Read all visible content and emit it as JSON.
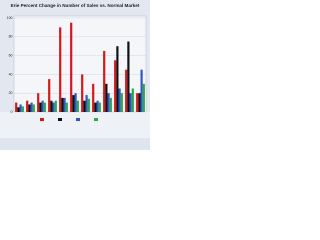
{
  "chart_data": {
    "type": "bar",
    "title": "Erie Percent Change in Number of Sales vs. Normal Market",
    "categories": [
      null,
      null,
      null,
      null,
      null,
      null,
      null,
      null,
      null,
      null,
      null,
      null
    ],
    "series": [
      {
        "color": "#d11a1a",
        "values": [
          10,
          12,
          20,
          35,
          90,
          95,
          40,
          30,
          65,
          55,
          45,
          20
        ]
      },
      {
        "color": "#111111",
        "values": [
          5,
          8,
          10,
          12,
          15,
          18,
          12,
          10,
          30,
          70,
          75,
          20
        ]
      },
      {
        "color": "#2f56c8",
        "values": [
          8,
          10,
          12,
          10,
          15,
          20,
          18,
          12,
          20,
          25,
          20,
          45
        ]
      },
      {
        "color": "#2aa84a",
        "values": [
          6,
          8,
          10,
          12,
          10,
          12,
          14,
          10,
          15,
          20,
          25,
          30
        ]
      }
    ],
    "ylim": [
      0,
      100
    ],
    "yticks": [
      0,
      20,
      40,
      60,
      80,
      100
    ],
    "grid": true
  }
}
